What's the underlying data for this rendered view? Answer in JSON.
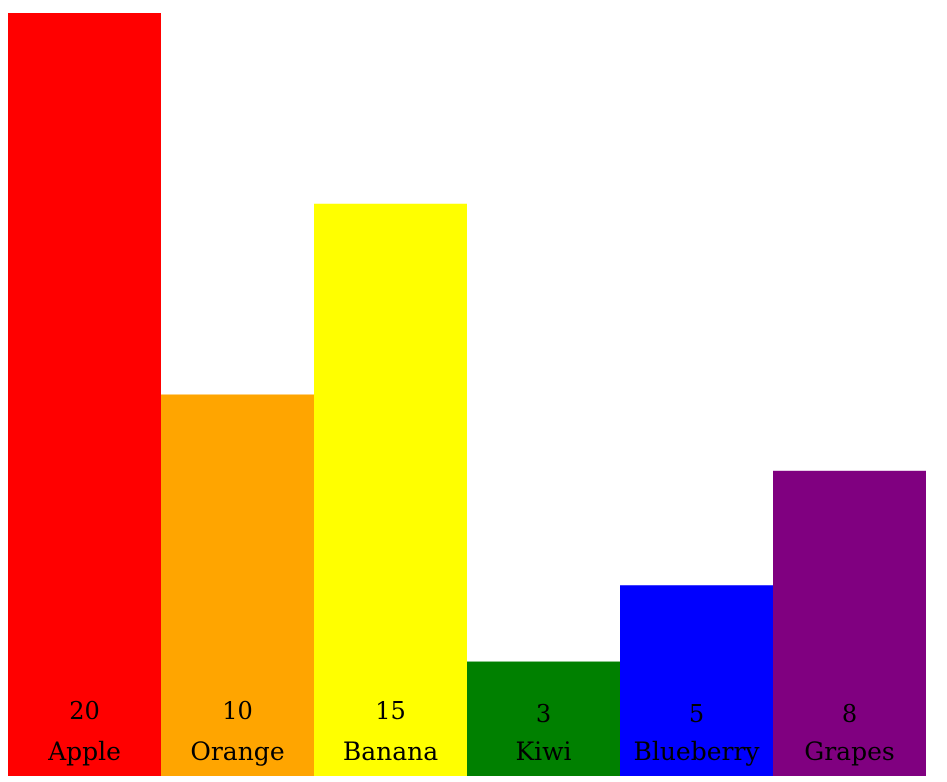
{
  "chart_data": {
    "type": "bar",
    "title": "",
    "xlabel": "",
    "ylabel": "",
    "categories": [
      "Apple",
      "Orange",
      "Banana",
      "Kiwi",
      "Blueberry",
      "Grapes"
    ],
    "values": [
      20,
      10,
      15,
      3,
      5,
      8
    ],
    "colors": [
      "#ff0000",
      "#ffa500",
      "#ffff00",
      "#008000",
      "#0000ff",
      "#800080"
    ],
    "ylim": [
      0,
      20
    ],
    "grid": false,
    "legend": "none",
    "value_labels": [
      "20",
      "10",
      "15",
      "3",
      "5",
      "8"
    ]
  }
}
